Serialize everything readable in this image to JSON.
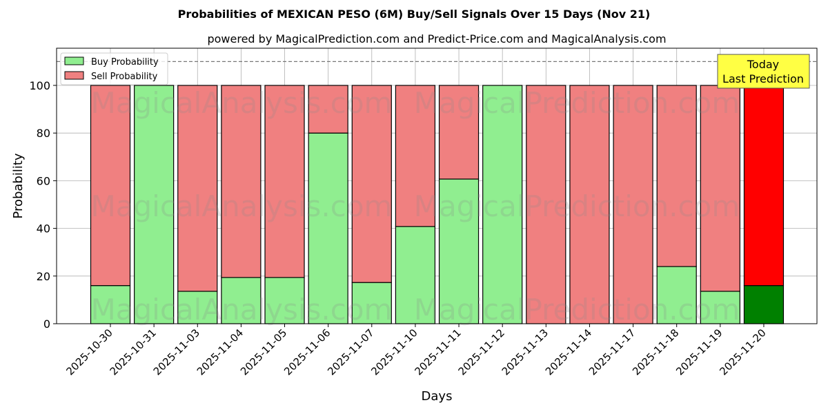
{
  "chart_data": {
    "type": "bar",
    "stacked": true,
    "title": "Probabilities of MEXICAN PESO (6M) Buy/Sell Signals Over 15 Days (Nov 21)",
    "subtitle": "powered by MagicalPrediction.com and Predict-Price.com and MagicalAnalysis.com",
    "xlabel": "Days",
    "ylabel": "Probability",
    "ylim": [
      0,
      115.6
    ],
    "yticks": [
      0,
      20,
      40,
      60,
      80,
      100
    ],
    "reference_line": 110,
    "grid": true,
    "legend_position": "top-left",
    "categories": [
      "2025-10-30",
      "2025-10-31",
      "2025-11-03",
      "2025-11-04",
      "2025-11-05",
      "2025-11-06",
      "2025-11-07",
      "2025-11-10",
      "2025-11-11",
      "2025-11-12",
      "2025-11-13",
      "2025-11-14",
      "2025-11-17",
      "2025-11-18",
      "2025-11-19",
      "2025-11-20"
    ],
    "series": [
      {
        "name": "Buy Probability",
        "color": "#90ee90",
        "values": [
          16,
          100,
          13.6,
          19.4,
          19.4,
          80,
          17.3,
          40.8,
          60.7,
          100,
          0,
          0,
          0,
          24,
          13.6,
          16
        ]
      },
      {
        "name": "Sell Probability",
        "color": "#f08080",
        "values": [
          84,
          0,
          86.4,
          80.6,
          80.6,
          20,
          82.7,
          59.2,
          39.3,
          0,
          100,
          100,
          100,
          76,
          86.4,
          84
        ]
      }
    ],
    "highlight": {
      "buy_color": "#008000",
      "sell_color": "#ff0000",
      "index": 15
    },
    "annotation": {
      "line1": "Today",
      "line2": "Last Prediction"
    },
    "watermarks": [
      "MagicalAnalysis.com",
      "MagicalPrediction.com"
    ]
  }
}
